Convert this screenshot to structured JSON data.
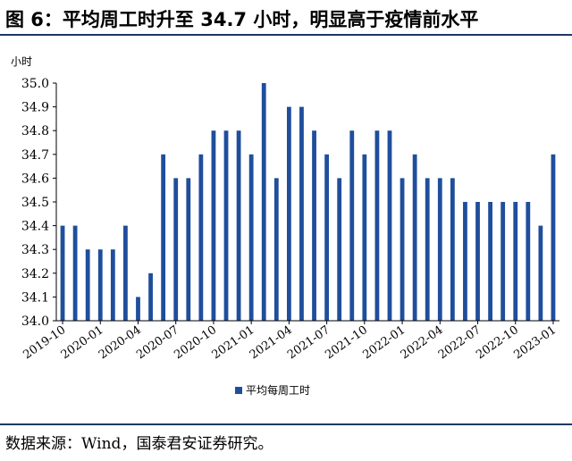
{
  "header": {
    "title": "图 6：平均周工时升至 34.7 小时，明显高于疫情前水平"
  },
  "footer": {
    "source": "数据来源：Wind，国泰君安证券研究。"
  },
  "colors": {
    "bar": "#1f4e9c",
    "rule": "#1f3864"
  },
  "chart_data": {
    "type": "bar",
    "ylabel": "小时",
    "ylim": [
      34.0,
      35.0
    ],
    "yticks": [
      "34.0",
      "34.1",
      "34.2",
      "34.3",
      "34.4",
      "34.5",
      "34.6",
      "34.7",
      "34.8",
      "34.9",
      "35.0"
    ],
    "xtick_labels": [
      "2019-10",
      "2020-01",
      "2020-04",
      "2020-07",
      "2020-10",
      "2021-01",
      "2021-04",
      "2021-07",
      "2021-10",
      "2022-01",
      "2022-04",
      "2022-07",
      "2022-10",
      "2023-01"
    ],
    "legend": {
      "position": "bottom"
    },
    "series": [
      {
        "name": "平均每周工时",
        "values": [
          34.4,
          34.4,
          34.3,
          34.3,
          34.3,
          34.4,
          34.1,
          34.2,
          34.7,
          34.6,
          34.6,
          34.7,
          34.8,
          34.8,
          34.8,
          34.7,
          35.0,
          34.6,
          34.9,
          34.9,
          34.8,
          34.7,
          34.6,
          34.8,
          34.7,
          34.8,
          34.8,
          34.6,
          34.7,
          34.6,
          34.6,
          34.6,
          34.5,
          34.5,
          34.5,
          34.5,
          34.5,
          34.5,
          34.4,
          34.7
        ]
      }
    ]
  }
}
